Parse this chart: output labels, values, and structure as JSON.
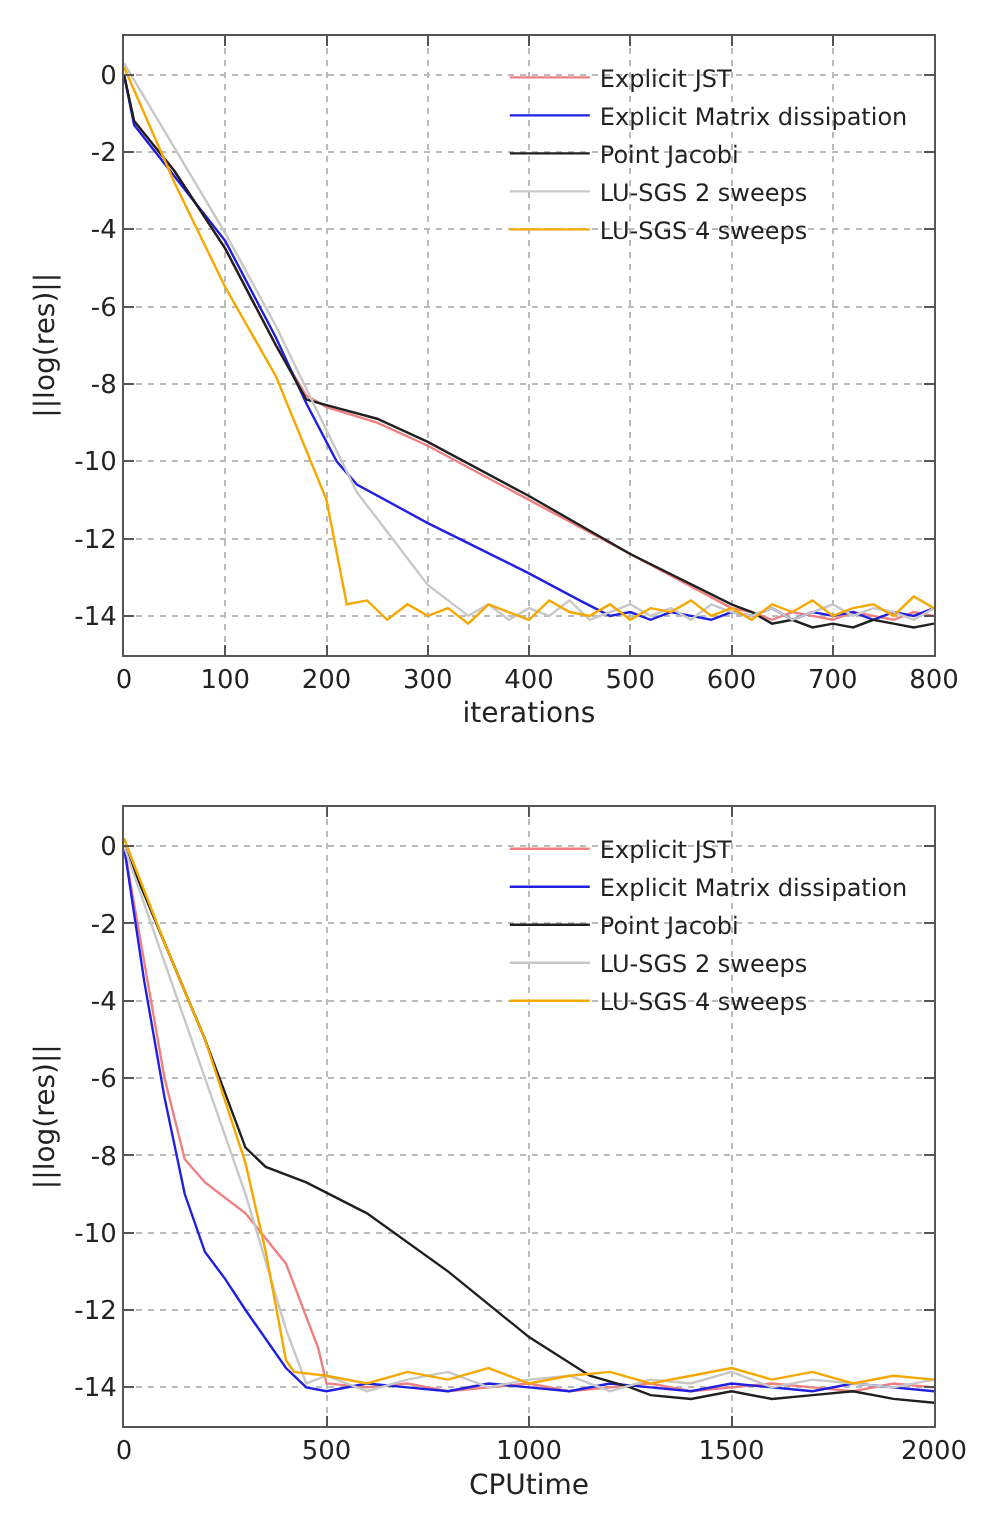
{
  "chart_data": [
    {
      "type": "line",
      "xlabel": "iterations",
      "ylabel": "||log(res)||",
      "xlim": [
        0,
        800
      ],
      "xticks": [
        0,
        100,
        200,
        300,
        400,
        500,
        600,
        700,
        800
      ],
      "ylim": [
        -15,
        1
      ],
      "yticks": [
        0,
        -2,
        -4,
        -6,
        -8,
        -10,
        -12,
        -14
      ],
      "grid": true,
      "legend": "top right",
      "series": [
        {
          "name": "Explicit JST",
          "color": "#f08080",
          "x": [
            0,
            10,
            50,
            100,
            150,
            180,
            200,
            250,
            300,
            400,
            500,
            600,
            620,
            640,
            660,
            680,
            700,
            720,
            740,
            760,
            780,
            800
          ],
          "values": [
            0,
            -1.2,
            -2.5,
            -4.5,
            -7,
            -8.3,
            -8.6,
            -9.0,
            -9.6,
            -11.0,
            -12.4,
            -13.8,
            -13.9,
            -14.1,
            -13.9,
            -14.0,
            -14.1,
            -13.9,
            -14.0,
            -14.1,
            -13.9,
            -14.0
          ]
        },
        {
          "name": "Explicit Matrix dissipation",
          "color": "#2020e0",
          "x": [
            0,
            10,
            100,
            150,
            180,
            210,
            230,
            300,
            400,
            450,
            480,
            500,
            520,
            540,
            560,
            580,
            600,
            620,
            640,
            660,
            680,
            700,
            720,
            740,
            760,
            780,
            800
          ],
          "values": [
            0,
            -1.3,
            -4.3,
            -6.8,
            -8.5,
            -10.0,
            -10.6,
            -11.6,
            -12.9,
            -13.6,
            -14.0,
            -13.9,
            -14.1,
            -13.9,
            -14.0,
            -14.1,
            -13.9,
            -14.0,
            -13.8,
            -14.1,
            -13.9,
            -14.0,
            -13.9,
            -14.1,
            -13.9,
            -14.0,
            -13.8
          ]
        },
        {
          "name": "Point Jacobi",
          "color": "#202020",
          "x": [
            0,
            10,
            50,
            100,
            150,
            180,
            200,
            250,
            300,
            400,
            500,
            600,
            620,
            640,
            660,
            680,
            700,
            720,
            740,
            760,
            780,
            800
          ],
          "values": [
            0,
            -1.2,
            -2.5,
            -4.5,
            -7,
            -8.4,
            -8.55,
            -8.9,
            -9.5,
            -10.9,
            -12.4,
            -13.7,
            -13.9,
            -14.2,
            -14.1,
            -14.3,
            -14.2,
            -14.3,
            -14.1,
            -14.2,
            -14.3,
            -14.2
          ]
        },
        {
          "name": "LU-SGS 2 sweeps",
          "color": "#c8c8c8",
          "x": [
            0,
            100,
            150,
            200,
            230,
            300,
            340,
            360,
            380,
            400,
            420,
            440,
            460,
            480,
            500,
            520,
            540,
            560,
            580,
            600,
            620,
            640,
            660,
            680,
            700,
            720,
            740,
            760,
            780,
            800
          ],
          "values": [
            0.3,
            -4.1,
            -6.5,
            -9.2,
            -10.8,
            -13.2,
            -14.0,
            -13.7,
            -14.1,
            -13.8,
            -14.0,
            -13.6,
            -14.1,
            -13.9,
            -13.7,
            -14.0,
            -13.8,
            -14.1,
            -13.7,
            -13.9,
            -14.0,
            -13.8,
            -14.1,
            -13.9,
            -13.7,
            -14.0,
            -13.8,
            -13.9,
            -14.1,
            -13.8
          ]
        },
        {
          "name": "LU-SGS 4 sweeps",
          "color": "#f5a800",
          "x": [
            0,
            50,
            100,
            150,
            200,
            220,
            240,
            260,
            280,
            300,
            320,
            340,
            360,
            380,
            400,
            420,
            440,
            460,
            480,
            500,
            520,
            540,
            560,
            580,
            600,
            620,
            640,
            660,
            680,
            700,
            720,
            740,
            760,
            780,
            800
          ],
          "values": [
            0.2,
            -2.8,
            -5.5,
            -7.8,
            -11.0,
            -13.7,
            -13.6,
            -14.1,
            -13.7,
            -14.0,
            -13.8,
            -14.2,
            -13.7,
            -13.9,
            -14.1,
            -13.6,
            -13.9,
            -14.0,
            -13.7,
            -14.1,
            -13.8,
            -13.9,
            -13.6,
            -14.0,
            -13.8,
            -14.1,
            -13.7,
            -13.9,
            -13.6,
            -14.0,
            -13.8,
            -13.7,
            -14.0,
            -13.5,
            -13.8
          ]
        }
      ]
    },
    {
      "type": "line",
      "xlabel": "CPUtime",
      "ylabel": "||log(res)||",
      "xlim": [
        0,
        2000
      ],
      "xticks": [
        0,
        500,
        1000,
        1500,
        2000
      ],
      "ylim": [
        -15,
        1
      ],
      "yticks": [
        0,
        -2,
        -4,
        -6,
        -8,
        -10,
        -12,
        -14
      ],
      "grid": true,
      "legend": "top right",
      "series": [
        {
          "name": "Explicit JST",
          "color": "#f08080",
          "x": [
            0,
            50,
            100,
            150,
            200,
            300,
            400,
            480,
            500,
            600,
            700,
            800,
            900,
            1000,
            1100,
            1200,
            1300,
            1400,
            1500,
            1600,
            1700,
            1800,
            1900,
            2000
          ],
          "values": [
            0,
            -3,
            -6,
            -8.1,
            -8.7,
            -9.5,
            -10.8,
            -13,
            -13.9,
            -14.0,
            -13.9,
            -14.1,
            -14.0,
            -13.9,
            -14.1,
            -14.0,
            -13.9,
            -14.1,
            -14.0,
            -13.9,
            -14.0,
            -14.1,
            -13.9,
            -14.0
          ]
        },
        {
          "name": "Explicit Matrix dissipation",
          "color": "#2020e0",
          "x": [
            0,
            50,
            100,
            150,
            200,
            250,
            300,
            400,
            450,
            500,
            600,
            700,
            800,
            900,
            1000,
            1100,
            1200,
            1300,
            1400,
            1500,
            1600,
            1700,
            1800,
            1900,
            2000
          ],
          "values": [
            0,
            -3.5,
            -6.5,
            -9,
            -10.5,
            -11.2,
            -12,
            -13.5,
            -14.0,
            -14.1,
            -13.9,
            -14.0,
            -14.1,
            -13.9,
            -14.0,
            -14.1,
            -13.9,
            -14.0,
            -14.1,
            -13.9,
            -14.0,
            -14.1,
            -13.9,
            -14.0,
            -14.1
          ]
        },
        {
          "name": "Point Jacobi",
          "color": "#202020",
          "x": [
            0,
            100,
            200,
            300,
            350,
            450,
            600,
            800,
            1000,
            1150,
            1250,
            1300,
            1400,
            1500,
            1600,
            1700,
            1800,
            1900,
            2000
          ],
          "values": [
            0,
            -2.5,
            -5,
            -7.8,
            -8.3,
            -8.7,
            -9.5,
            -11,
            -12.7,
            -13.7,
            -14.0,
            -14.2,
            -14.3,
            -14.1,
            -14.3,
            -14.2,
            -14.1,
            -14.3,
            -14.4
          ]
        },
        {
          "name": "LU-SGS 2 sweeps",
          "color": "#c8c8c8",
          "x": [
            0,
            100,
            200,
            300,
            400,
            450,
            500,
            600,
            700,
            800,
            900,
            1000,
            1100,
            1200,
            1300,
            1400,
            1500,
            1600,
            1700,
            1800,
            1900,
            2000
          ],
          "values": [
            0,
            -3,
            -6,
            -9,
            -12.5,
            -13.9,
            -13.7,
            -14.1,
            -13.8,
            -13.6,
            -14.0,
            -13.8,
            -13.7,
            -14.1,
            -13.8,
            -13.9,
            -13.6,
            -14.0,
            -13.8,
            -13.9,
            -14.0,
            -13.8
          ]
        },
        {
          "name": "LU-SGS 4 sweeps",
          "color": "#f5a800",
          "x": [
            0,
            100,
            200,
            300,
            350,
            400,
            420,
            500,
            600,
            700,
            800,
            900,
            1000,
            1100,
            1200,
            1300,
            1400,
            1500,
            1600,
            1700,
            1800,
            1900,
            2000
          ],
          "values": [
            0.2,
            -2.5,
            -5,
            -8.2,
            -10.5,
            -13.3,
            -13.6,
            -13.7,
            -13.9,
            -13.6,
            -13.8,
            -13.5,
            -13.9,
            -13.7,
            -13.6,
            -13.9,
            -13.7,
            -13.5,
            -13.8,
            -13.6,
            -13.9,
            -13.7,
            -13.8
          ]
        }
      ]
    }
  ]
}
